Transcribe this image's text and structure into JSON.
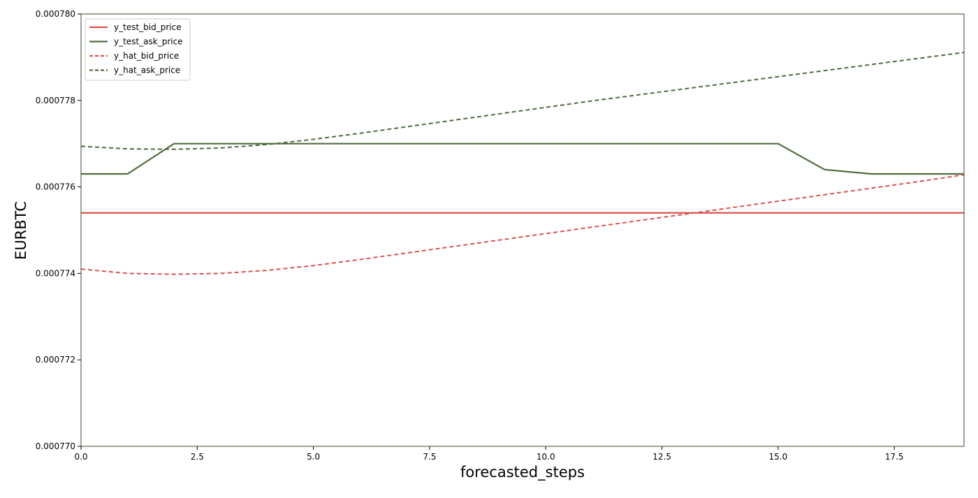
{
  "chart_data": {
    "type": "line",
    "title": "",
    "xlabel": "forecasted_steps",
    "ylabel": "EURBTC",
    "xlim": [
      0,
      19
    ],
    "ylim": [
      0.00077,
      0.00078
    ],
    "x_ticks": [
      0,
      2.5,
      5,
      7.5,
      10,
      12.5,
      15,
      17.5
    ],
    "x_tick_labels": [
      "0.0",
      "2.5",
      "5.0",
      "7.5",
      "10.0",
      "12.5",
      "15.0",
      "17.5"
    ],
    "y_ticks": [
      0.00077,
      0.000772,
      0.000774,
      0.000776,
      0.000778,
      0.00078
    ],
    "y_tick_labels": [
      "0.000770",
      "0.000772",
      "0.000774",
      "0.000776",
      "0.000778",
      "0.000780"
    ],
    "grid": false,
    "legend_position": "top-left",
    "x": [
      0,
      1,
      2,
      3,
      4,
      5,
      6,
      7,
      8,
      9,
      10,
      11,
      12,
      13,
      14,
      15,
      16,
      17,
      18,
      19
    ],
    "series": [
      {
        "name": "y_test_bid_price",
        "color": "#d9534f",
        "dash": "solid",
        "values": [
          0.0007754,
          0.0007754,
          0.0007754,
          0.0007754,
          0.0007754,
          0.0007754,
          0.0007754,
          0.0007754,
          0.0007754,
          0.0007754,
          0.0007754,
          0.0007754,
          0.0007754,
          0.0007754,
          0.0007754,
          0.0007754,
          0.0007754,
          0.0007754,
          0.0007754,
          0.0007754
        ]
      },
      {
        "name": "y_test_ask_price",
        "color": "#4f6b3f",
        "dash": "solid",
        "values": [
          0.0007763,
          0.0007763,
          0.000777,
          0.000777,
          0.000777,
          0.000777,
          0.000777,
          0.000777,
          0.000777,
          0.000777,
          0.000777,
          0.000777,
          0.000777,
          0.000777,
          0.000777,
          0.000777,
          0.0007764,
          0.0007763,
          0.0007763,
          0.0007763
        ]
      },
      {
        "name": "y_hat_bid_price",
        "color": "#d9534f",
        "dash": "dashed",
        "values": [
          0.0007741,
          0.000774,
          0.00077398,
          0.000774,
          0.00077407,
          0.00077418,
          0.00077432,
          0.00077447,
          0.00077462,
          0.00077477,
          0.00077492,
          0.00077507,
          0.00077522,
          0.00077537,
          0.00077552,
          0.00077567,
          0.00077582,
          0.00077597,
          0.00077612,
          0.00077628
        ]
      },
      {
        "name": "y_hat_ask_price",
        "color": "#4f6b3f",
        "dash": "dashed",
        "values": [
          0.00077694,
          0.00077688,
          0.00077687,
          0.0007769,
          0.00077698,
          0.0007771,
          0.00077724,
          0.00077739,
          0.00077754,
          0.00077769,
          0.00077784,
          0.00077799,
          0.00077813,
          0.00077827,
          0.00077841,
          0.00077855,
          0.00077869,
          0.00077883,
          0.00077897,
          0.00077911
        ]
      }
    ]
  }
}
